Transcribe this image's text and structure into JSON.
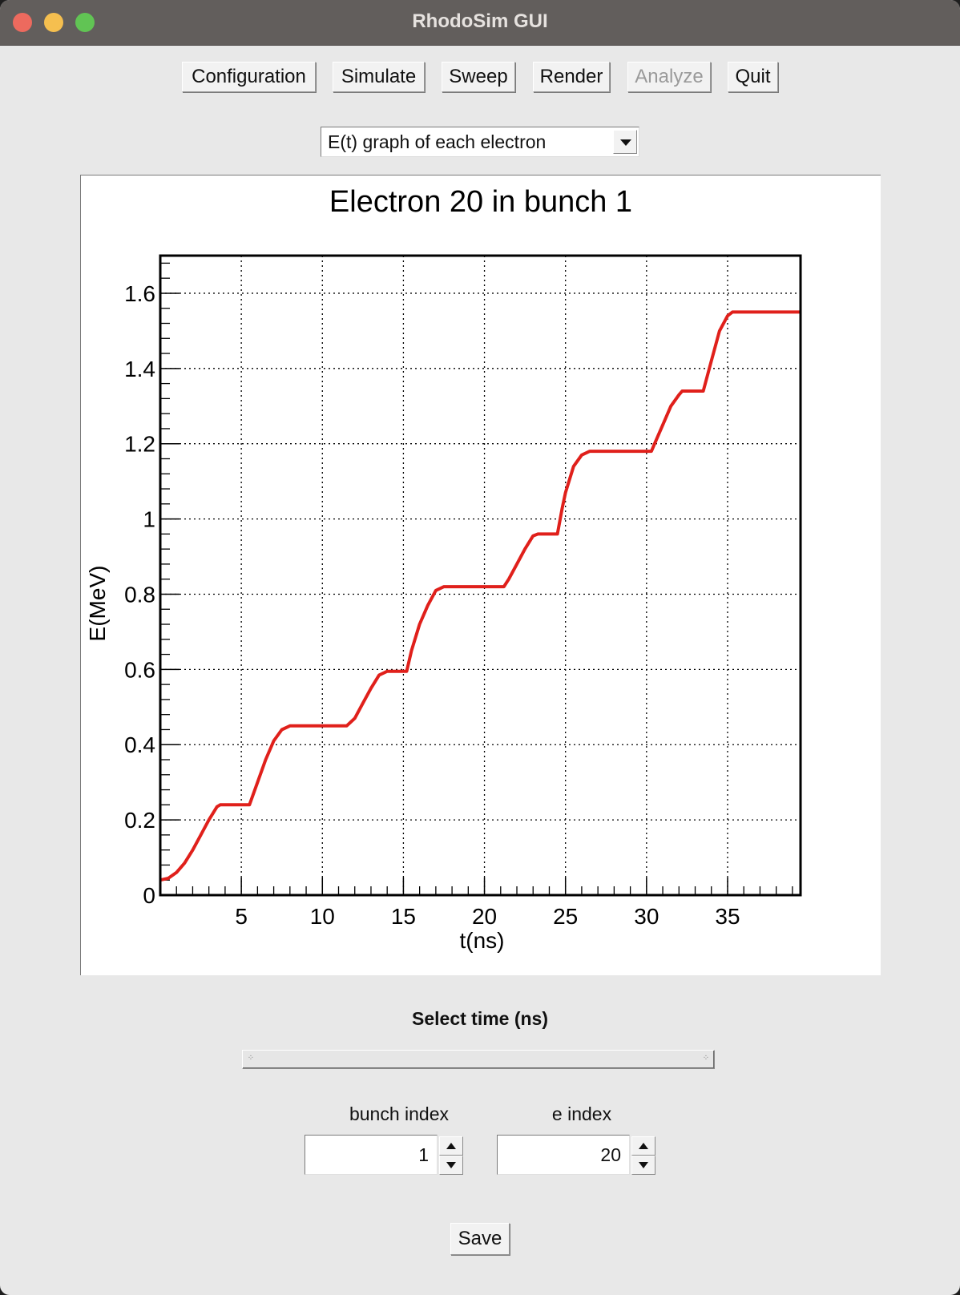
{
  "window": {
    "title": "RhodoSim GUI"
  },
  "toolbar": {
    "configuration": "Configuration",
    "simulate": "Simulate",
    "sweep": "Sweep",
    "render": "Render",
    "analyze": "Analyze",
    "quit": "Quit"
  },
  "view_select": {
    "value": "E(t) graph of each electron"
  },
  "chart_data": {
    "type": "line",
    "title": "Electron 20 in bunch 1",
    "xlabel": "t(ns)",
    "ylabel": "E(MeV)",
    "xlim": [
      0,
      39.5
    ],
    "ylim": [
      0,
      1.7
    ],
    "grid": true,
    "x_ticks": [
      5,
      10,
      15,
      20,
      25,
      30,
      35
    ],
    "y_ticks": [
      0,
      0.2,
      0.4,
      0.6,
      0.8,
      1,
      1.2,
      1.4,
      1.6
    ],
    "x_tick_labels": [
      "5",
      "10",
      "15",
      "20",
      "25",
      "30",
      "35"
    ],
    "y_tick_labels": [
      "0",
      "0.2",
      "0.4",
      "0.6",
      "0.8",
      "1",
      "1.2",
      "1.4",
      "1.6"
    ],
    "color": "#e0201b",
    "series": [
      {
        "x": [
          0,
          0.5,
          1,
          1.5,
          2,
          2.5,
          3,
          3.5,
          3.7,
          5.5,
          6,
          6.5,
          7,
          7.5,
          8,
          11.5,
          12,
          12.5,
          13,
          13.5,
          14,
          15.2,
          15.5,
          16,
          16.5,
          17,
          17.5,
          21.2,
          21.5,
          22,
          22.5,
          23,
          23.3,
          24.5,
          24.8,
          25,
          25.5,
          26,
          26.5,
          30.3,
          30.5,
          31,
          31.5,
          32,
          32.2,
          33.5,
          34,
          34.5,
          35,
          35.3,
          39.5
        ],
        "y": [
          0.04,
          0.045,
          0.06,
          0.085,
          0.12,
          0.16,
          0.2,
          0.235,
          0.24,
          0.24,
          0.3,
          0.36,
          0.41,
          0.44,
          0.45,
          0.45,
          0.47,
          0.51,
          0.55,
          0.585,
          0.595,
          0.595,
          0.65,
          0.72,
          0.77,
          0.81,
          0.82,
          0.82,
          0.84,
          0.88,
          0.92,
          0.955,
          0.96,
          0.96,
          1.03,
          1.07,
          1.14,
          1.17,
          1.18,
          1.18,
          1.2,
          1.25,
          1.3,
          1.33,
          1.34,
          1.34,
          1.42,
          1.5,
          1.54,
          1.55,
          1.55
        ]
      }
    ]
  },
  "time_section": {
    "label": "Select time (ns)"
  },
  "bunch": {
    "label": "bunch index",
    "value": "1"
  },
  "electron": {
    "label": "e index",
    "value": "20"
  },
  "save_label": "Save"
}
